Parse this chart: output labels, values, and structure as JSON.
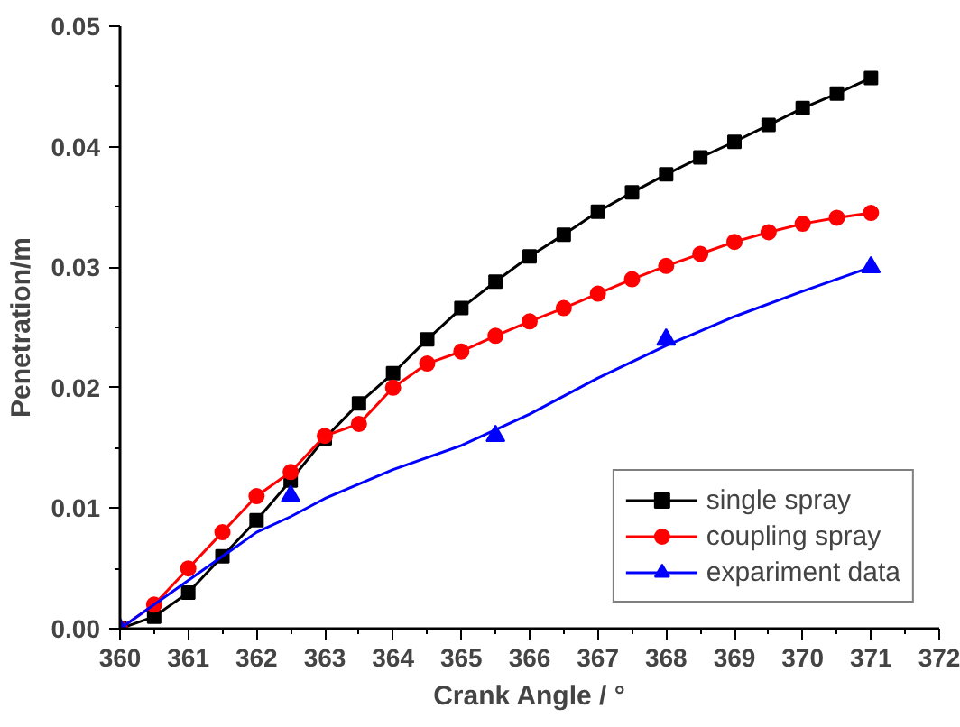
{
  "chart_data": {
    "type": "line",
    "xlabel": "Crank Angle / °",
    "ylabel": "Penetration/m",
    "xlim": [
      360,
      372
    ],
    "xticks": [
      360,
      361,
      362,
      363,
      364,
      365,
      366,
      367,
      368,
      369,
      370,
      371,
      372
    ],
    "ylim": [
      0,
      0.05
    ],
    "yticks": [
      {
        "value": 0,
        "label": "0.00"
      },
      {
        "value": 0.01,
        "label": "0.01"
      },
      {
        "value": 0.02,
        "label": "0.02"
      },
      {
        "value": 0.03,
        "label": "0.03"
      },
      {
        "value": 0.04,
        "label": "0.04"
      },
      {
        "value": 0.05,
        "label": "0.05"
      }
    ],
    "grid": false,
    "legend": "bottom right",
    "series": [
      {
        "name": "single spray",
        "color": "#000000",
        "marker": "square",
        "x": [
          360,
          360.5,
          361,
          361.5,
          362,
          362.5,
          363,
          363.5,
          364,
          364.5,
          365,
          365.5,
          366,
          366.5,
          367,
          367.5,
          368,
          368.5,
          369,
          369.5,
          370,
          370.5,
          371
        ],
        "values": [
          0,
          0.001,
          0.003,
          0.006,
          0.009,
          0.0123,
          0.0158,
          0.0187,
          0.0212,
          0.024,
          0.0266,
          0.0288,
          0.0309,
          0.0327,
          0.0346,
          0.0362,
          0.0377,
          0.0391,
          0.0404,
          0.0418,
          0.0432,
          0.0444,
          0.0457
        ]
      },
      {
        "name": "coupling spray",
        "color": "#ff0000",
        "marker": "circle",
        "x": [
          360,
          360.5,
          361,
          361.5,
          362,
          362.5,
          363,
          363.5,
          364,
          364.5,
          365,
          365.5,
          366,
          366.5,
          367,
          367.5,
          368,
          368.5,
          369,
          369.5,
          370,
          370.5,
          371
        ],
        "values": [
          0,
          0.002,
          0.005,
          0.008,
          0.011,
          0.013,
          0.016,
          0.017,
          0.02,
          0.022,
          0.023,
          0.0243,
          0.0255,
          0.0266,
          0.0278,
          0.029,
          0.0301,
          0.0311,
          0.0321,
          0.0329,
          0.0336,
          0.0341,
          0.0345
        ]
      },
      {
        "type": "line",
        "color": "#0000ff",
        "marker": "none",
        "x": [
          360,
          361,
          361.5,
          362,
          362.5,
          363,
          364,
          365,
          366,
          367,
          368,
          369,
          370,
          371
        ],
        "values": [
          0,
          0.004,
          0.006,
          0.008,
          0.0093,
          0.0108,
          0.0132,
          0.0152,
          0.0178,
          0.0208,
          0.0235,
          0.0259,
          0.028,
          0.03
        ]
      },
      {
        "name": "expariment data",
        "type": "scatter",
        "color": "#0000ff",
        "marker": "triangle",
        "x": [
          360,
          362.5,
          365.5,
          368,
          371
        ],
        "values": [
          0,
          0.011,
          0.016,
          0.024,
          0.03
        ]
      }
    ]
  }
}
